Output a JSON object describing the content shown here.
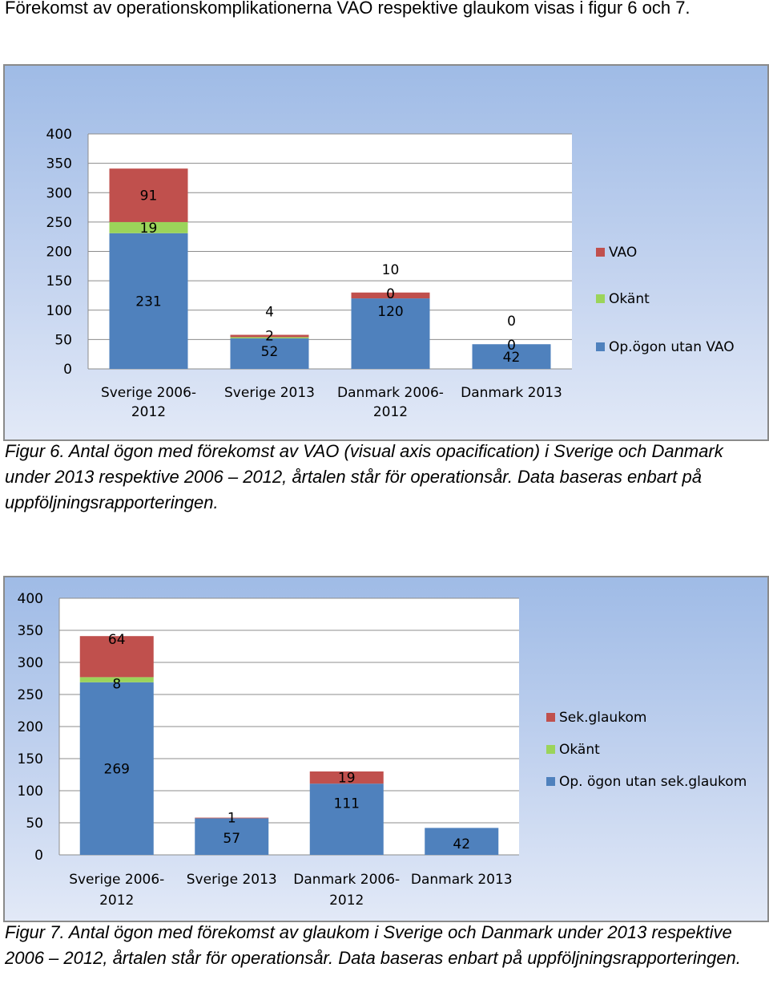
{
  "intro_text": "Förekomst av operationskomplikationerna VAO respektive glaukom visas i figur 6 och 7.",
  "caption_fig6": " Figur 6. Antal ögon med förekomst av VAO (visual axis opacification) i Sverige och Danmark under 2013 respektive 2006 – 2012, årtalen står för operationsår. Data baseras enbart på uppföljningsrapporteringen.",
  "caption_fig7": " Figur 7. Antal ögon med förekomst av glaukom i Sverige och Danmark under 2013 respektive 2006 – 2012, årtalen står för operationsår. Data baseras enbart på uppföljningsrapporteringen.",
  "chart_data": [
    {
      "type": "bar",
      "stacked": true,
      "categories": [
        [
          "Sverige  2006-",
          "2012"
        ],
        [
          "Sverige 2013"
        ],
        [
          "Danmark 2006-",
          "2012"
        ],
        [
          "Danmark 2013"
        ]
      ],
      "ylim": [
        0,
        400
      ],
      "yticks": [
        0,
        50,
        100,
        150,
        200,
        250,
        300,
        350,
        400
      ],
      "series": [
        {
          "name": "Op.ögon utan VAO",
          "color": "#4f81bd",
          "values": [
            231,
            52,
            120,
            42
          ]
        },
        {
          "name": "Okänt",
          "color": "#9bd45a",
          "values": [
            19,
            2,
            0,
            0
          ]
        },
        {
          "name": "VAO",
          "color": "#c0504d",
          "values": [
            91,
            4,
            10,
            0
          ]
        }
      ],
      "legend_position": "right"
    },
    {
      "type": "bar",
      "stacked": true,
      "categories": [
        [
          "Sverige  2006-",
          "2012"
        ],
        [
          "Sverige 2013"
        ],
        [
          "Danmark 2006-",
          "2012"
        ],
        [
          "Danmark 2013"
        ]
      ],
      "ylim": [
        0,
        400
      ],
      "yticks": [
        0,
        50,
        100,
        150,
        200,
        250,
        300,
        350,
        400
      ],
      "series": [
        {
          "name": "Op. ögon utan sek.glaukom",
          "color": "#4f81bd",
          "values": [
            269,
            57,
            111,
            42
          ]
        },
        {
          "name": "Okänt",
          "color": "#9bd45a",
          "values": [
            8,
            0,
            0,
            0
          ]
        },
        {
          "name": "Sek.glaukom",
          "color": "#c0504d",
          "values": [
            64,
            1,
            19,
            0
          ]
        }
      ],
      "data_labels": [
        [
          "269",
          "8",
          "64"
        ],
        [
          "57",
          "",
          "1"
        ],
        [
          "111",
          "",
          "19"
        ],
        [
          "42",
          "",
          ""
        ]
      ],
      "legend_position": "right"
    }
  ]
}
